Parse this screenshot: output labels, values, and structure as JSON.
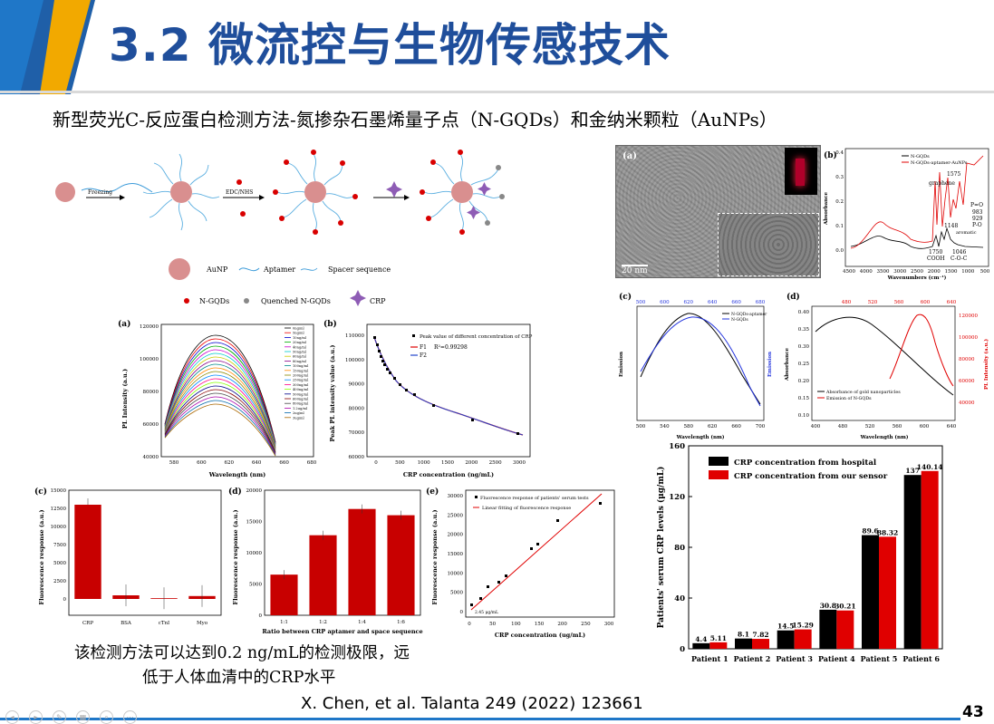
{
  "slide": {
    "title": "3.2 微流控与生物传感技术",
    "subtitle": "新型荧光C-反应蛋白检测方法-氮掺杂石墨烯量子点（N-GQDs）和金纳米颗粒（AuNPs）",
    "conclusion_line1": "该检测方法可以达到0.2 ng/mL的检测极限，远",
    "conclusion_line2": "低于人体血清中的CRP水平",
    "citation": "X. Chen, et al. Talanta 249 (2022) 123661",
    "page_number": "43",
    "colors": {
      "title": "#1f4e9b",
      "accent_blue": "#1f77c8",
      "accent_orange": "#f2a900",
      "bar_red": "#e00000",
      "bar_black": "#000000"
    }
  },
  "scheme": {
    "step1": "Freezing",
    "step2": "EDC/NHS",
    "legend": {
      "aunp": "AuNP",
      "aptamer": "Aptamer",
      "spacer": "Spacer sequence",
      "ngqds": "N-GQDs",
      "quenched": "Quenched N-GQDs",
      "crp": "CRP"
    }
  },
  "panel_a": {
    "label": "(a)",
    "ylabel": "PL Intensity (a.u.)",
    "xlabel": "Wavelength (nm)",
    "yticks": [
      "40000",
      "60000",
      "80000",
      "100000",
      "120000"
    ],
    "xticks": [
      "580",
      "600",
      "620",
      "640",
      "660",
      "680"
    ],
    "legend": [
      "0ng/ml",
      "5ng/ml",
      "10ng/ml",
      "20ng/ml",
      "40ng/ml",
      "50ng/ml",
      "60ng/ml",
      "80ng/ml",
      "100ng/ml",
      "150ng/ml",
      "200ng/ml",
      "250ng/ml",
      "300ng/ml",
      "400ng/ml",
      "500ng/ml",
      "600ng/ml",
      "800ng/ml",
      "1.2ug/ml",
      "2ug/ml",
      "3ug/ml"
    ]
  },
  "panel_b": {
    "label": "(b)",
    "ylabel": "Peak PL intensity value (a.u.)",
    "xlabel": "CRP concentration (ng/mL)",
    "legend_points": "Peak value of different concentration of CRP",
    "legend_f1": "F1",
    "legend_f2": "F2",
    "r2": "R²=0.99298",
    "yticks": [
      "60000",
      "70000",
      "80000",
      "90000",
      "100000",
      "110000"
    ],
    "xticks": [
      "0",
      "500",
      "1000",
      "1500",
      "2000",
      "2500",
      "3000"
    ]
  },
  "panel_c": {
    "label": "(c)",
    "ylabel": "Fluorescence response (a.u.)",
    "yticks": [
      "0",
      "2500",
      "5000",
      "7500",
      "10000",
      "12500",
      "15000"
    ]
  },
  "panel_d": {
    "label": "(d)",
    "ylabel": "Fluorescence response (a.u.)",
    "xlabel": "Ratio between CRP aptamer and space sequence",
    "yticks": [
      "0",
      "5000",
      "10000",
      "15000",
      "20000"
    ]
  },
  "panel_e": {
    "label": "(e)",
    "ylabel": "Fluorescence response (a.u.)",
    "xlabel": "CRP concentration (ug/mL)",
    "legend_points": "Fluorescence response of patients' serum tests",
    "legend_line": "Linear fitting of fluorescence response",
    "annotation": "2.45 μg/mL",
    "yticks": [
      "0",
      "5000",
      "10000",
      "15000",
      "20000",
      "25000",
      "30000"
    ],
    "xticks": [
      "0",
      "50",
      "100",
      "150",
      "200",
      "250",
      "300"
    ]
  },
  "tem": {
    "label": "(a)",
    "scale": "20 nm"
  },
  "ftir": {
    "label": "(b)",
    "ylabel": "Absorbance",
    "xlabel": "Wavenumbers (cm⁻¹)",
    "legend1": "N-GQDs",
    "legend2": "N-GQDs-aptamer-AuNPs",
    "peaks": [
      "1575",
      "graphene",
      "P=O",
      "983",
      "929",
      "P-O",
      "1148",
      "aromatic",
      "1750",
      "COOH",
      "1046",
      "C-O-C"
    ],
    "yticks": [
      "0.0",
      "0.1",
      "0.2",
      "0.3",
      "0.4"
    ],
    "xticks": [
      "4500",
      "4000",
      "3500",
      "3000",
      "2500",
      "2000",
      "1500",
      "1000",
      "500"
    ]
  },
  "panel_fc": {
    "label": "(c)",
    "ylabel_left": "Emission",
    "ylabel_right": "Emission",
    "xlabel": "Wavelength (nm)",
    "legend1": "N-GQDs-aptamer",
    "legend2": "N-GQDs",
    "xticks": [
      "500",
      "540",
      "580",
      "620",
      "660",
      "700"
    ],
    "xticks_top": [
      "500",
      "600",
      "620",
      "640",
      "660",
      "680"
    ]
  },
  "panel_fd": {
    "label": "(d)",
    "ylabel_left": "Absorbance",
    "ylabel_right": "PL Intensity (a.u.)",
    "xlabel": "Wavelength (nm)",
    "legend1": "Absorbance of gold nanoparticles",
    "legend2": "Emission of N-GQDs",
    "yticks": [
      "0.10",
      "0.15",
      "0.20",
      "0.25",
      "0.30",
      "0.35",
      "0.40"
    ],
    "yticks_right": [
      "40000",
      "60000",
      "80000",
      "100000",
      "120000"
    ],
    "xticks": [
      "400",
      "480",
      "520",
      "560",
      "600",
      "640"
    ],
    "xticks_top": [
      "480",
      "520",
      "560",
      "600",
      "640"
    ]
  },
  "chart_data": [
    {
      "type": "bar",
      "ylabel": "Patients' serum CRP levels (μg/mL)",
      "categories": [
        "Patient 1",
        "Patient 2",
        "Patient 3",
        "Patient 4",
        "Patient 5",
        "Patient 6"
      ],
      "series": [
        {
          "name": "CRP concentration from hospital",
          "values": [
            4.4,
            8.1,
            14.5,
            30.8,
            89.6,
            137
          ],
          "labels": [
            "4.4",
            "8.1",
            "14.5",
            "30.8",
            "89.6",
            "137"
          ],
          "color": "#000000"
        },
        {
          "name": "CRP concentration from our sensor",
          "values": [
            5.11,
            7.82,
            15.29,
            30.21,
            88.32,
            140.14
          ],
          "labels": [
            "5.11",
            "7.82",
            "15.29",
            "30.21",
            "88.32",
            "140.14"
          ],
          "color": "#e00000"
        }
      ],
      "yticks": [
        "0",
        "40",
        "80",
        "120",
        "160"
      ],
      "ylim": [
        0,
        160
      ]
    },
    {
      "type": "bar",
      "categories": [
        "CRP",
        "BSA",
        "cTnI",
        "Myo"
      ],
      "values": [
        13000,
        500,
        100,
        400
      ],
      "ylim": [
        0,
        15000
      ]
    },
    {
      "type": "bar",
      "categories": [
        "1:1",
        "1:2",
        "1:4",
        "1:6"
      ],
      "values": [
        6500,
        12800,
        17000,
        16000
      ],
      "ylim": [
        0,
        20000
      ]
    }
  ]
}
